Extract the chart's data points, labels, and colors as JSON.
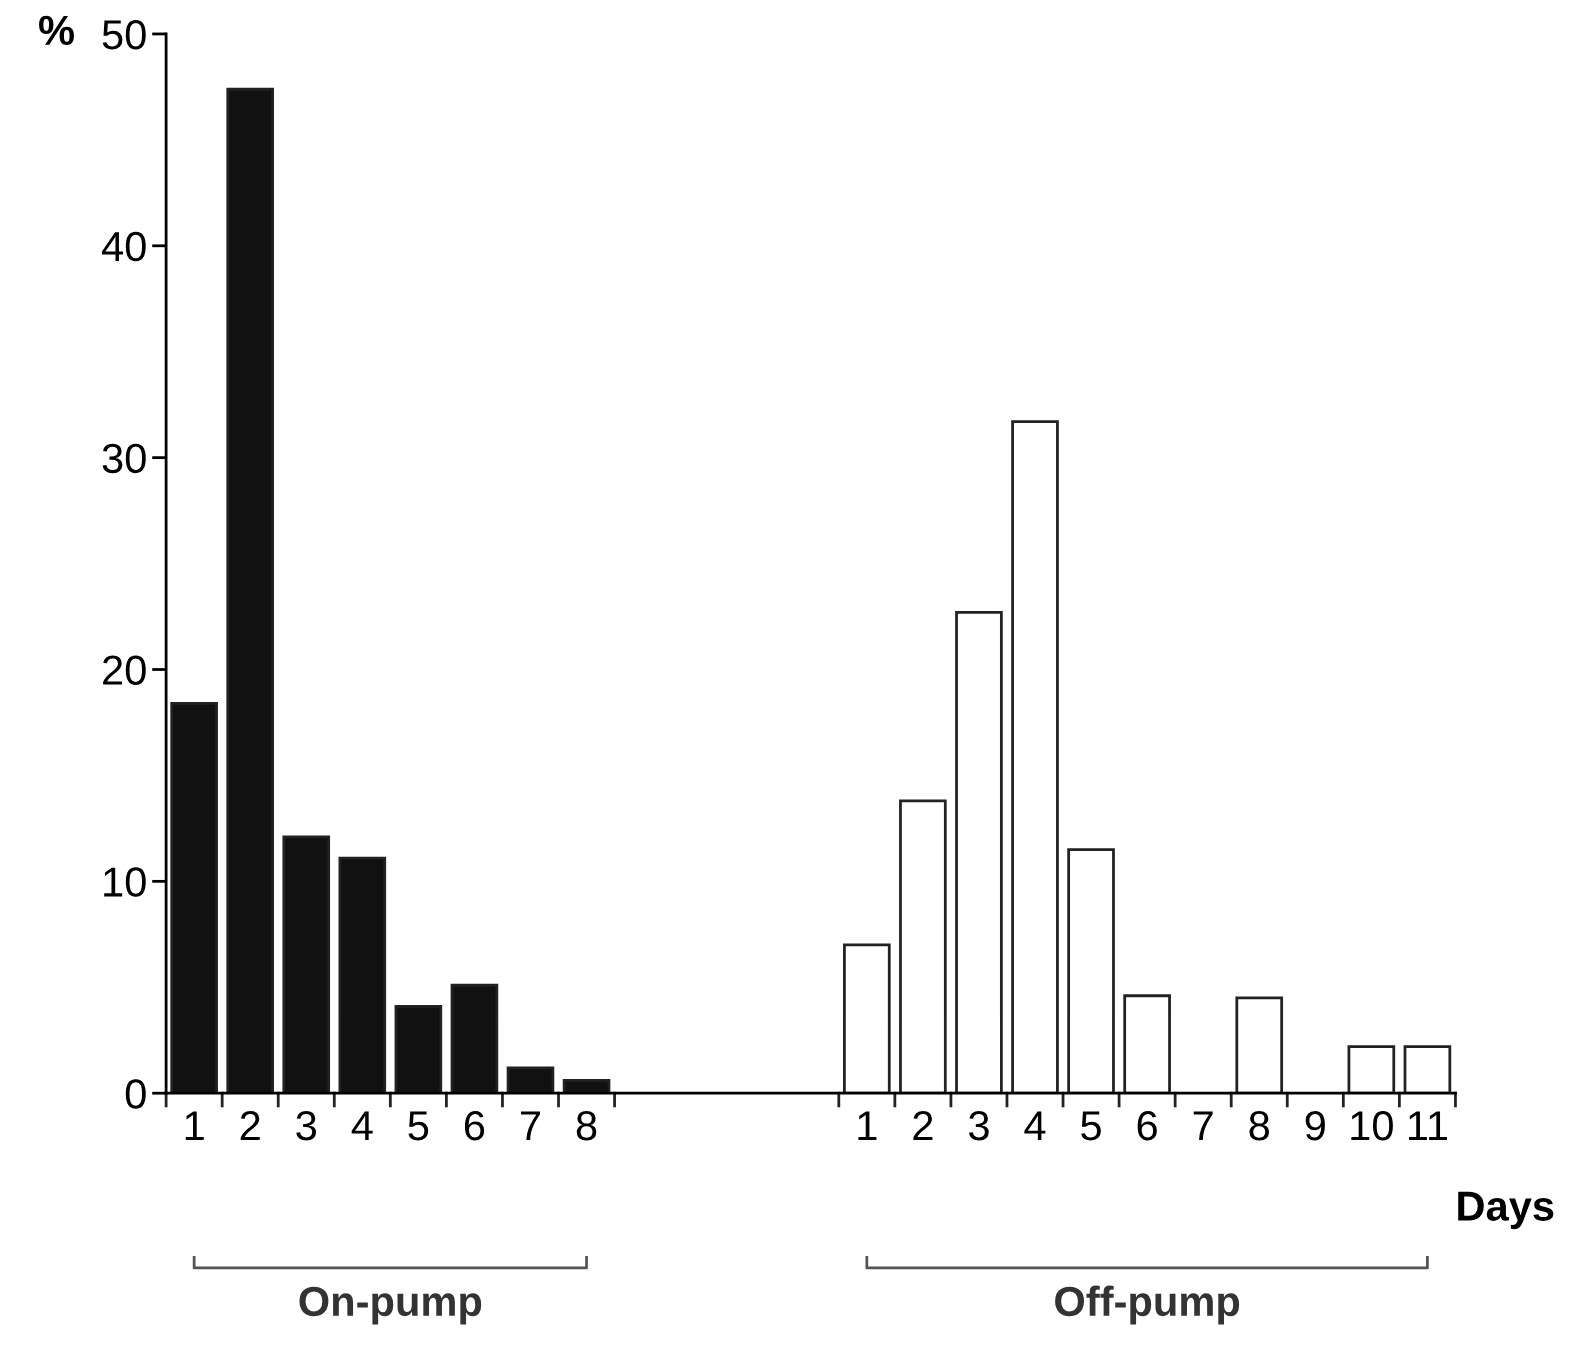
{
  "chart_data": {
    "type": "bar",
    "xlabel": "Days",
    "ylabel": "%",
    "categories": [
      "1",
      "2",
      "3",
      "4",
      "5",
      "6",
      "7",
      "8",
      null,
      null,
      null,
      null,
      "1",
      "2",
      "3",
      "4",
      "5",
      "6",
      "7",
      "8",
      "9",
      "10",
      "11"
    ],
    "series": [
      {
        "color": "#111111",
        "values": [
          18.4,
          47.4,
          12.1,
          11.1,
          4.1,
          5.1,
          1.2,
          0.6,
          null,
          null,
          null,
          null,
          null,
          null,
          null,
          null,
          null,
          null,
          null,
          null,
          null,
          null,
          null
        ]
      },
      {
        "color": "#ffffff",
        "values": [
          null,
          null,
          null,
          null,
          null,
          null,
          null,
          null,
          null,
          null,
          null,
          null,
          7.0,
          13.8,
          22.7,
          31.7,
          11.5,
          4.6,
          null,
          4.5,
          null,
          2.2,
          2.2
        ]
      }
    ],
    "annotations": [
      "On-pump",
      "Off-pump"
    ],
    "ylim": [
      0,
      50
    ],
    "yticks": [
      0,
      10,
      20,
      30,
      40,
      50
    ],
    "grid": false,
    "legend": false
  }
}
